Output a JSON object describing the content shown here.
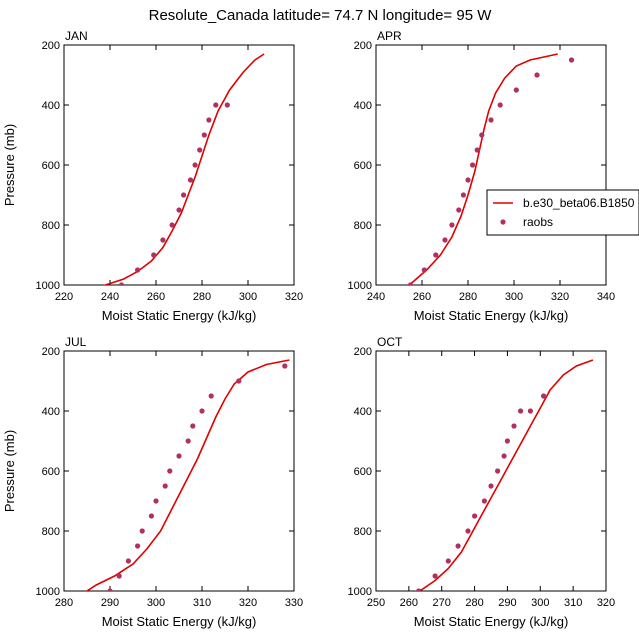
{
  "figure": {
    "title": "Resolute_Canada  latitude= 74.7 N longitude= 95 W"
  },
  "colors": {
    "model": "#e00000",
    "obs": "#b03060"
  },
  "legend": {
    "placement": "right of APR panel",
    "entries": [
      {
        "label": "b.e30_beta06.B1850",
        "type": "line",
        "color": "#e00000"
      },
      {
        "label": "raobs",
        "type": "marker",
        "color": "#b03060"
      }
    ]
  },
  "chart_data": [
    {
      "type": "line",
      "panel": "JAN",
      "title": "JAN",
      "xlabel": "Moist Static Energy (kJ/kg)",
      "ylabel": "Pressure (mb)",
      "xlim": [
        220,
        320
      ],
      "ylim": [
        1000,
        200
      ],
      "y_inverted": true,
      "xticks": [
        220,
        240,
        260,
        280,
        300,
        320
      ],
      "yticks": [
        200,
        400,
        600,
        800,
        1000
      ],
      "series": [
        {
          "name": "b.e30_beta06.B1850",
          "kind": "line",
          "x": [
            234,
            240,
            246,
            252,
            258,
            263,
            267,
            271,
            274,
            277,
            280,
            283,
            287,
            292,
            298,
            303,
            307
          ],
          "y": [
            1010,
            995,
            980,
            955,
            920,
            875,
            820,
            760,
            700,
            640,
            570,
            500,
            420,
            350,
            290,
            250,
            230
          ]
        },
        {
          "name": "raobs",
          "kind": "scatter",
          "x": [
            245,
            252,
            259,
            263,
            267,
            270,
            272,
            275,
            277,
            279,
            281,
            283,
            286,
            291
          ],
          "y": [
            1000,
            950,
            900,
            850,
            800,
            750,
            700,
            650,
            600,
            550,
            500,
            450,
            400,
            400
          ]
        }
      ]
    },
    {
      "type": "line",
      "panel": "APR",
      "title": "APR",
      "xlabel": "Moist Static Energy (kJ/kg)",
      "ylabel": "",
      "xlim": [
        240,
        340
      ],
      "ylim": [
        1000,
        200
      ],
      "y_inverted": true,
      "xticks": [
        240,
        260,
        280,
        300,
        320,
        340
      ],
      "yticks": [
        200,
        400,
        600,
        800,
        1000
      ],
      "series": [
        {
          "name": "b.e30_beta06.B1850",
          "kind": "line",
          "x": [
            251,
            256,
            262,
            268,
            273,
            277,
            280,
            283,
            285,
            287,
            289,
            292,
            296,
            301,
            307,
            313,
            319
          ],
          "y": [
            1020,
            990,
            950,
            900,
            840,
            770,
            700,
            620,
            550,
            480,
            420,
            360,
            310,
            270,
            250,
            240,
            230
          ]
        },
        {
          "name": "raobs",
          "kind": "scatter",
          "x": [
            255,
            261,
            266,
            270,
            273,
            276,
            278,
            280,
            282,
            284,
            286,
            290,
            294,
            301,
            310,
            325
          ],
          "y": [
            1000,
            950,
            900,
            850,
            800,
            750,
            700,
            650,
            600,
            550,
            500,
            450,
            400,
            350,
            300,
            250
          ]
        }
      ]
    },
    {
      "type": "line",
      "panel": "JUL",
      "title": "JUL",
      "xlabel": "Moist Static Energy (kJ/kg)",
      "ylabel": "Pressure (mb)",
      "xlim": [
        280,
        330
      ],
      "ylim": [
        1000,
        200
      ],
      "y_inverted": true,
      "xticks": [
        280,
        290,
        300,
        310,
        320,
        330
      ],
      "yticks": [
        200,
        400,
        600,
        800,
        1000
      ],
      "series": [
        {
          "name": "b.e30_beta06.B1850",
          "kind": "line",
          "x": [
            284,
            287,
            291,
            295,
            298,
            301,
            303,
            305,
            307,
            309,
            311,
            313,
            315,
            317,
            320,
            324,
            329
          ],
          "y": [
            1010,
            980,
            950,
            910,
            860,
            800,
            740,
            680,
            620,
            560,
            490,
            420,
            360,
            310,
            270,
            245,
            230
          ]
        },
        {
          "name": "raobs",
          "kind": "scatter",
          "x": [
            290,
            292,
            294,
            296,
            297,
            299,
            300,
            302,
            303,
            305,
            307,
            308,
            310,
            312,
            318,
            328
          ],
          "y": [
            1000,
            950,
            900,
            850,
            800,
            750,
            700,
            650,
            600,
            550,
            500,
            450,
            400,
            350,
            300,
            250
          ]
        }
      ]
    },
    {
      "type": "line",
      "panel": "OCT",
      "title": "OCT",
      "xlabel": "Moist Static Energy (kJ/kg)",
      "ylabel": "",
      "xlim": [
        250,
        320
      ],
      "ylim": [
        1000,
        200
      ],
      "y_inverted": true,
      "xticks": [
        250,
        260,
        270,
        280,
        290,
        300,
        310,
        320
      ],
      "yticks": [
        200,
        400,
        600,
        800,
        1000
      ],
      "series": [
        {
          "name": "b.e30_beta06.B1850",
          "kind": "line",
          "x": [
            260,
            264,
            268,
            272,
            276,
            279,
            282,
            285,
            288,
            291,
            294,
            297,
            300,
            303,
            307,
            311,
            316
          ],
          "y": [
            1010,
            995,
            965,
            925,
            870,
            810,
            750,
            690,
            630,
            570,
            510,
            450,
            390,
            330,
            280,
            250,
            230
          ]
        },
        {
          "name": "raobs",
          "kind": "scatter",
          "x": [
            263,
            268,
            272,
            275,
            278,
            280,
            283,
            285,
            287,
            289,
            290,
            292,
            294,
            297,
            301
          ],
          "y": [
            1000,
            950,
            900,
            850,
            800,
            750,
            700,
            650,
            600,
            550,
            500,
            450,
            400,
            400,
            350
          ]
        }
      ]
    }
  ]
}
